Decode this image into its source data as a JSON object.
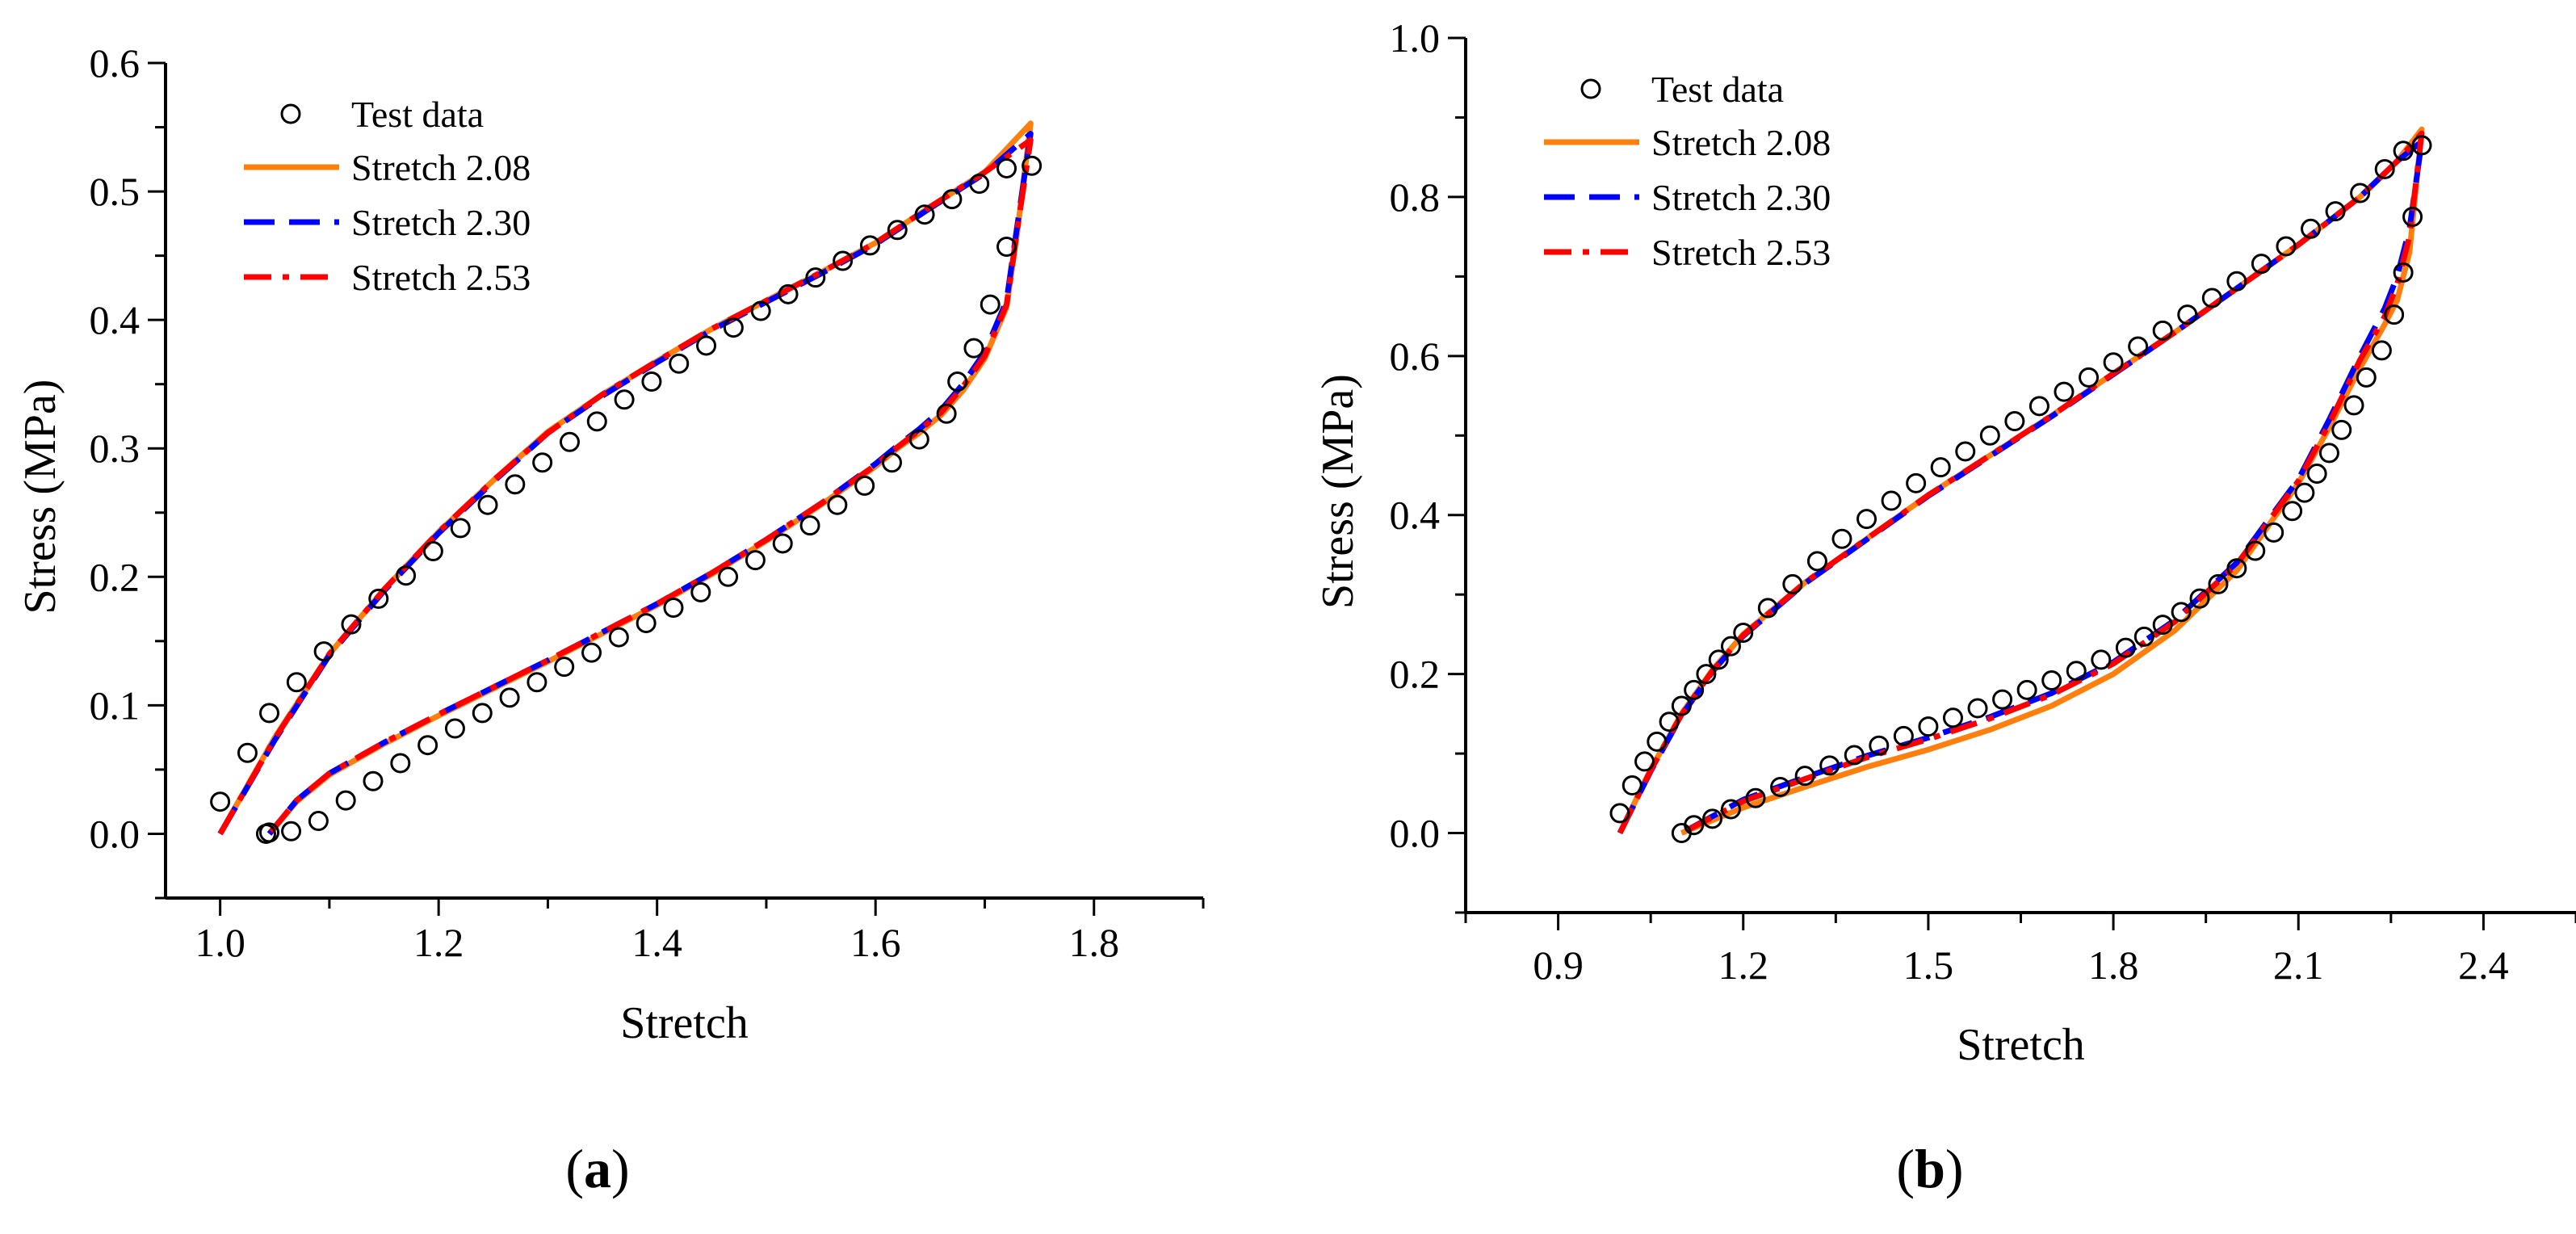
{
  "chart_data": [
    {
      "type": "line",
      "panel_label": {
        "open": "(",
        "letter": "a",
        "close": ")"
      },
      "xlabel": "Stretch",
      "ylabel": "Stress (MPa)",
      "xlim": [
        0.95,
        1.9
      ],
      "ylim": [
        -0.05,
        0.6
      ],
      "xticks": [
        "1.0",
        "1.2",
        "1.4",
        "1.6",
        "1.8"
      ],
      "yticks": [
        "0.0",
        "0.1",
        "0.2",
        "0.3",
        "0.4",
        "0.5",
        "0.6"
      ],
      "grid": false,
      "legend_position": "top-left",
      "colors": {
        "stretch_208": "#ff7f0e",
        "stretch_230": "#0000ff",
        "stretch_253": "#ff0000"
      },
      "test_data": {
        "name": "Test data",
        "marker": "open-circle",
        "x": [
          1.0,
          1.025,
          1.045,
          1.07,
          1.095,
          1.12,
          1.145,
          1.17,
          1.195,
          1.22,
          1.245,
          1.27,
          1.295,
          1.32,
          1.345,
          1.37,
          1.395,
          1.42,
          1.445,
          1.47,
          1.495,
          1.52,
          1.545,
          1.57,
          1.595,
          1.62,
          1.645,
          1.67,
          1.695,
          1.72,
          1.743,
          1.72,
          1.705,
          1.69,
          1.675,
          1.665,
          1.64,
          1.615,
          1.59,
          1.565,
          1.54,
          1.515,
          1.49,
          1.465,
          1.44,
          1.415,
          1.39,
          1.365,
          1.34,
          1.315,
          1.29,
          1.265,
          1.24,
          1.215,
          1.19,
          1.165,
          1.14,
          1.115,
          1.09,
          1.065,
          1.045,
          1.042
        ],
        "y": [
          0.025,
          0.063,
          0.094,
          0.118,
          0.142,
          0.163,
          0.183,
          0.201,
          0.22,
          0.238,
          0.256,
          0.272,
          0.289,
          0.305,
          0.321,
          0.338,
          0.352,
          0.366,
          0.38,
          0.394,
          0.407,
          0.42,
          0.433,
          0.446,
          0.458,
          0.47,
          0.482,
          0.494,
          0.506,
          0.518,
          0.52,
          0.457,
          0.412,
          0.378,
          0.352,
          0.327,
          0.307,
          0.289,
          0.271,
          0.256,
          0.24,
          0.226,
          0.213,
          0.2,
          0.188,
          0.176,
          0.164,
          0.153,
          0.141,
          0.13,
          0.118,
          0.106,
          0.094,
          0.082,
          0.069,
          0.055,
          0.041,
          0.026,
          0.01,
          0.002,
          0.001,
          0.0
        ]
      },
      "series": [
        {
          "name": "Stretch 2.08",
          "style": "solid",
          "color": "#ff7f0e",
          "x": [
            1.0,
            1.05,
            1.1,
            1.15,
            1.2,
            1.25,
            1.3,
            1.35,
            1.4,
            1.45,
            1.5,
            1.55,
            1.6,
            1.65,
            1.7,
            1.742,
            1.73,
            1.72,
            1.7,
            1.68,
            1.66,
            1.64,
            1.62,
            1.6,
            1.55,
            1.5,
            1.45,
            1.4,
            1.35,
            1.3,
            1.25,
            1.2,
            1.15,
            1.1,
            1.07,
            1.045
          ],
          "y": [
            0.0,
            0.075,
            0.14,
            0.19,
            0.235,
            0.275,
            0.313,
            0.342,
            0.368,
            0.393,
            0.415,
            0.437,
            0.46,
            0.488,
            0.515,
            0.553,
            0.47,
            0.41,
            0.37,
            0.345,
            0.326,
            0.312,
            0.3,
            0.286,
            0.256,
            0.228,
            0.202,
            0.178,
            0.156,
            0.134,
            0.113,
            0.092,
            0.07,
            0.046,
            0.025,
            0.0
          ]
        },
        {
          "name": "Stretch 2.30",
          "style": "dash",
          "color": "#0000ff",
          "x": [
            1.0,
            1.05,
            1.1,
            1.15,
            1.2,
            1.25,
            1.3,
            1.35,
            1.4,
            1.45,
            1.5,
            1.55,
            1.6,
            1.65,
            1.7,
            1.742,
            1.73,
            1.72,
            1.7,
            1.68,
            1.66,
            1.64,
            1.62,
            1.6,
            1.55,
            1.5,
            1.45,
            1.4,
            1.35,
            1.3,
            1.25,
            1.2,
            1.15,
            1.1,
            1.07,
            1.045
          ],
          "y": [
            0.0,
            0.073,
            0.139,
            0.189,
            0.234,
            0.274,
            0.312,
            0.341,
            0.367,
            0.392,
            0.414,
            0.436,
            0.459,
            0.487,
            0.514,
            0.545,
            0.475,
            0.415,
            0.375,
            0.35,
            0.33,
            0.315,
            0.302,
            0.288,
            0.257,
            0.229,
            0.203,
            0.179,
            0.157,
            0.135,
            0.114,
            0.093,
            0.071,
            0.047,
            0.026,
            0.0
          ]
        },
        {
          "name": "Stretch 2.53",
          "style": "dash-dot",
          "color": "#ff0000",
          "x": [
            1.0,
            1.05,
            1.1,
            1.15,
            1.2,
            1.25,
            1.3,
            1.35,
            1.4,
            1.45,
            1.5,
            1.55,
            1.6,
            1.65,
            1.7,
            1.742,
            1.73,
            1.72,
            1.7,
            1.68,
            1.66,
            1.64,
            1.62,
            1.6,
            1.55,
            1.5,
            1.45,
            1.4,
            1.35,
            1.3,
            1.25,
            1.2,
            1.15,
            1.1,
            1.07,
            1.045
          ],
          "y": [
            0.0,
            0.074,
            0.14,
            0.19,
            0.235,
            0.275,
            0.312,
            0.342,
            0.368,
            0.393,
            0.415,
            0.437,
            0.46,
            0.488,
            0.515,
            0.54,
            0.472,
            0.412,
            0.372,
            0.348,
            0.328,
            0.314,
            0.301,
            0.287,
            0.257,
            0.229,
            0.203,
            0.179,
            0.157,
            0.135,
            0.114,
            0.093,
            0.071,
            0.047,
            0.026,
            0.0
          ]
        }
      ]
    },
    {
      "type": "line",
      "panel_label": {
        "open": "(",
        "letter": "b",
        "close": ")"
      },
      "xlabel": "Stretch",
      "ylabel": "Stress (MPa)",
      "xlim": [
        0.75,
        2.55
      ],
      "ylim": [
        -0.1,
        1.0
      ],
      "xticks": [
        "0.9",
        "1.2",
        "1.5",
        "1.8",
        "2.1",
        "2.4"
      ],
      "yticks": [
        "0.0",
        "0.2",
        "0.4",
        "0.6",
        "0.8",
        "1.0"
      ],
      "grid": false,
      "legend_position": "top-left",
      "colors": {
        "stretch_208": "#ff7f0e",
        "stretch_230": "#0000ff",
        "stretch_253": "#ff0000"
      },
      "test_data": {
        "name": "Test data",
        "marker": "open-circle",
        "x": [
          1.0,
          1.02,
          1.04,
          1.06,
          1.08,
          1.1,
          1.12,
          1.14,
          1.16,
          1.18,
          1.2,
          1.24,
          1.28,
          1.32,
          1.36,
          1.4,
          1.44,
          1.48,
          1.52,
          1.56,
          1.6,
          1.64,
          1.68,
          1.72,
          1.76,
          1.8,
          1.84,
          1.88,
          1.92,
          1.96,
          2.0,
          2.04,
          2.08,
          2.12,
          2.16,
          2.2,
          2.24,
          2.27,
          2.3,
          2.285,
          2.27,
          2.255,
          2.235,
          2.21,
          2.19,
          2.17,
          2.15,
          2.13,
          2.11,
          2.09,
          2.06,
          2.03,
          2.0,
          1.97,
          1.94,
          1.91,
          1.88,
          1.85,
          1.82,
          1.78,
          1.74,
          1.7,
          1.66,
          1.62,
          1.58,
          1.54,
          1.5,
          1.46,
          1.42,
          1.38,
          1.34,
          1.3,
          1.26,
          1.22,
          1.18,
          1.15,
          1.12,
          1.1
        ],
        "y": [
          0.025,
          0.06,
          0.09,
          0.115,
          0.14,
          0.16,
          0.18,
          0.2,
          0.218,
          0.235,
          0.252,
          0.283,
          0.313,
          0.342,
          0.37,
          0.395,
          0.418,
          0.44,
          0.46,
          0.48,
          0.5,
          0.518,
          0.537,
          0.555,
          0.573,
          0.592,
          0.612,
          0.632,
          0.652,
          0.673,
          0.694,
          0.716,
          0.738,
          0.76,
          0.782,
          0.805,
          0.835,
          0.858,
          0.865,
          0.775,
          0.705,
          0.652,
          0.607,
          0.573,
          0.538,
          0.507,
          0.478,
          0.452,
          0.428,
          0.405,
          0.378,
          0.355,
          0.333,
          0.313,
          0.295,
          0.278,
          0.262,
          0.247,
          0.233,
          0.218,
          0.204,
          0.192,
          0.18,
          0.168,
          0.157,
          0.145,
          0.134,
          0.122,
          0.11,
          0.098,
          0.085,
          0.072,
          0.058,
          0.044,
          0.03,
          0.018,
          0.01,
          0.0
        ]
      },
      "series": [
        {
          "name": "Stretch 2.08",
          "style": "solid",
          "color": "#ff7f0e",
          "x": [
            1.0,
            1.05,
            1.1,
            1.15,
            1.2,
            1.3,
            1.4,
            1.5,
            1.6,
            1.7,
            1.8,
            1.9,
            2.0,
            2.1,
            2.2,
            2.26,
            2.3,
            2.28,
            2.26,
            2.24,
            2.2,
            2.15,
            2.1,
            2.0,
            1.9,
            1.8,
            1.7,
            1.6,
            1.5,
            1.4,
            1.3,
            1.2,
            1.1
          ],
          "y": [
            0.0,
            0.08,
            0.15,
            0.205,
            0.25,
            0.315,
            0.37,
            0.425,
            0.475,
            0.525,
            0.578,
            0.63,
            0.685,
            0.74,
            0.8,
            0.845,
            0.885,
            0.73,
            0.67,
            0.64,
            0.585,
            0.51,
            0.44,
            0.33,
            0.255,
            0.2,
            0.16,
            0.13,
            0.105,
            0.083,
            0.058,
            0.032,
            0.0
          ]
        },
        {
          "name": "Stretch 2.30",
          "style": "dash",
          "color": "#0000ff",
          "x": [
            1.0,
            1.05,
            1.1,
            1.15,
            1.2,
            1.3,
            1.4,
            1.5,
            1.6,
            1.7,
            1.8,
            1.9,
            2.0,
            2.1,
            2.2,
            2.26,
            2.3,
            2.28,
            2.26,
            2.24,
            2.2,
            2.15,
            2.1,
            2.0,
            1.9,
            1.8,
            1.7,
            1.6,
            1.5,
            1.4,
            1.3,
            1.2,
            1.1
          ],
          "y": [
            0.0,
            0.078,
            0.148,
            0.203,
            0.248,
            0.314,
            0.369,
            0.424,
            0.474,
            0.524,
            0.577,
            0.63,
            0.685,
            0.74,
            0.8,
            0.845,
            0.87,
            0.76,
            0.7,
            0.66,
            0.6,
            0.52,
            0.445,
            0.34,
            0.268,
            0.215,
            0.176,
            0.146,
            0.12,
            0.097,
            0.07,
            0.042,
            0.0
          ]
        },
        {
          "name": "Stretch 2.53",
          "style": "dash-dot",
          "color": "#ff0000",
          "x": [
            1.0,
            1.05,
            1.1,
            1.15,
            1.2,
            1.3,
            1.4,
            1.5,
            1.6,
            1.7,
            1.8,
            1.9,
            2.0,
            2.1,
            2.2,
            2.26,
            2.3,
            2.28,
            2.26,
            2.24,
            2.2,
            2.15,
            2.1,
            2.0,
            1.9,
            1.8,
            1.7,
            1.6,
            1.5,
            1.4,
            1.3,
            1.2,
            1.1
          ],
          "y": [
            0.0,
            0.079,
            0.149,
            0.204,
            0.249,
            0.315,
            0.37,
            0.425,
            0.475,
            0.525,
            0.578,
            0.63,
            0.685,
            0.74,
            0.8,
            0.845,
            0.88,
            0.75,
            0.69,
            0.65,
            0.595,
            0.515,
            0.443,
            0.338,
            0.266,
            0.213,
            0.174,
            0.144,
            0.118,
            0.095,
            0.068,
            0.04,
            0.0
          ]
        }
      ]
    }
  ]
}
